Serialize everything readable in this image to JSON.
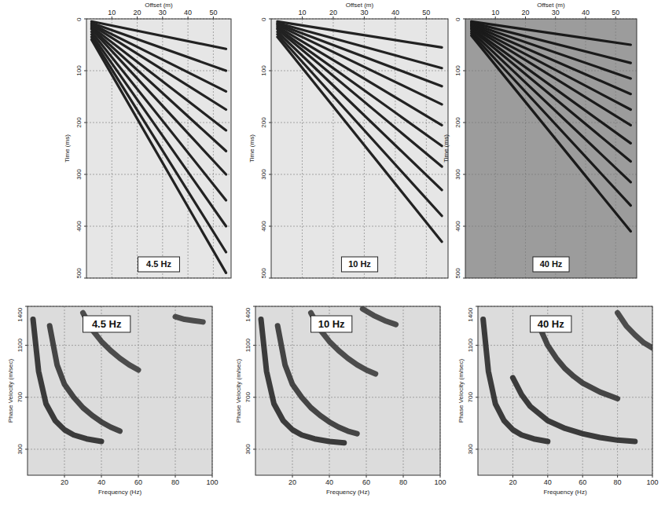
{
  "chart_data": [
    {
      "type": "gather",
      "title": "4.5 Hz",
      "x_label": "Offset (m)",
      "y_label": "Time (ms)",
      "xlim": [
        0,
        57
      ],
      "xticks": [
        10,
        20,
        30,
        40,
        50
      ],
      "ylim": [
        0,
        500
      ],
      "yticks": [
        0,
        100,
        200,
        300,
        400,
        500
      ],
      "grid": true,
      "x": [
        2,
        55
      ],
      "series": [
        {
          "color": "#222222",
          "values": [
            5,
            58
          ]
        },
        {
          "color": "#222222",
          "values": [
            8,
            100
          ]
        },
        {
          "color": "#222222",
          "values": [
            10,
            140
          ]
        },
        {
          "color": "#222222",
          "values": [
            12,
            175
          ]
        },
        {
          "color": "#222222",
          "values": [
            15,
            215
          ]
        },
        {
          "color": "#222222",
          "values": [
            18,
            255
          ]
        },
        {
          "color": "#222222",
          "values": [
            20,
            300
          ]
        },
        {
          "color": "#222222",
          "values": [
            25,
            350
          ]
        },
        {
          "color": "#222222",
          "values": [
            30,
            400
          ]
        },
        {
          "color": "#222222",
          "values": [
            35,
            450
          ]
        },
        {
          "color": "#222222",
          "values": [
            40,
            490
          ]
        }
      ]
    },
    {
      "type": "gather",
      "title": "10 Hz",
      "x_label": "Offset (m)",
      "y_label": "Time (ms)",
      "xlim": [
        0,
        57
      ],
      "xticks": [
        10,
        20,
        30,
        40,
        50
      ],
      "ylim": [
        0,
        500
      ],
      "yticks": [
        0,
        100,
        200,
        300,
        400,
        500
      ],
      "grid": true,
      "x": [
        2,
        55
      ],
      "series": [
        {
          "color": "#222222",
          "values": [
            5,
            55
          ]
        },
        {
          "color": "#222222",
          "values": [
            8,
            95
          ]
        },
        {
          "color": "#222222",
          "values": [
            10,
            130
          ]
        },
        {
          "color": "#222222",
          "values": [
            12,
            165
          ]
        },
        {
          "color": "#222222",
          "values": [
            15,
            205
          ]
        },
        {
          "color": "#222222",
          "values": [
            18,
            245
          ]
        },
        {
          "color": "#222222",
          "values": [
            20,
            285
          ]
        },
        {
          "color": "#222222",
          "values": [
            25,
            330
          ]
        },
        {
          "color": "#222222",
          "values": [
            30,
            380
          ]
        },
        {
          "color": "#222222",
          "values": [
            35,
            430
          ]
        }
      ]
    },
    {
      "type": "gather",
      "title": "40 Hz",
      "x_label": "Offset (m)",
      "y_label": "Time (ms)",
      "xlim": [
        0,
        57
      ],
      "xticks": [
        10,
        20,
        30,
        40,
        50
      ],
      "ylim": [
        0,
        500
      ],
      "yticks": [
        0,
        100,
        200,
        300,
        400,
        500
      ],
      "grid": true,
      "x": [
        2,
        55
      ],
      "series": [
        {
          "color": "#1a1a1a",
          "values": [
            5,
            50
          ]
        },
        {
          "color": "#1a1a1a",
          "values": [
            7,
            85
          ]
        },
        {
          "color": "#1a1a1a",
          "values": [
            9,
            115
          ]
        },
        {
          "color": "#1a1a1a",
          "values": [
            11,
            145
          ]
        },
        {
          "color": "#1a1a1a",
          "values": [
            13,
            175
          ]
        },
        {
          "color": "#1a1a1a",
          "values": [
            15,
            205
          ]
        },
        {
          "color": "#1a1a1a",
          "values": [
            18,
            240
          ]
        },
        {
          "color": "#1a1a1a",
          "values": [
            20,
            275
          ]
        },
        {
          "color": "#1a1a1a",
          "values": [
            24,
            315
          ]
        },
        {
          "color": "#1a1a1a",
          "values": [
            28,
            360
          ]
        },
        {
          "color": "#1a1a1a",
          "values": [
            32,
            410
          ]
        }
      ]
    },
    {
      "type": "dispersion",
      "title": "4.5 Hz",
      "x_label": "Frequency (Hz)",
      "y_label": "Phase Velocity (m/sec)",
      "xlim": [
        0,
        100
      ],
      "xticks": [
        20,
        40,
        60,
        80,
        100
      ],
      "ylim": [
        100,
        1400
      ],
      "yticks": [
        300,
        700,
        1100,
        1400
      ],
      "grid": true,
      "series": [
        {
          "color": "#1e1e1e",
          "x": [
            3,
            6,
            10,
            15,
            20,
            25,
            32,
            40
          ],
          "values": [
            1300,
            900,
            650,
            520,
            450,
            410,
            380,
            360
          ]
        },
        {
          "color": "#2a2a2a",
          "x": [
            12,
            16,
            20,
            25,
            30,
            35,
            40,
            45,
            50
          ],
          "values": [
            1250,
            950,
            800,
            700,
            620,
            560,
            510,
            470,
            440
          ]
        },
        {
          "color": "#333333",
          "x": [
            30,
            35,
            40,
            45,
            50,
            55,
            60
          ],
          "values": [
            1350,
            1220,
            1130,
            1060,
            1000,
            950,
            910
          ]
        },
        {
          "color": "#333333",
          "x": [
            80,
            85,
            90,
            95
          ],
          "values": [
            1320,
            1300,
            1290,
            1280
          ]
        }
      ]
    },
    {
      "type": "dispersion",
      "title": "10 Hz",
      "x_label": "Frequency (Hz)",
      "y_label": "Phase Velocity (m/sec)",
      "xlim": [
        0,
        100
      ],
      "xticks": [
        20,
        40,
        60,
        80,
        100
      ],
      "ylim": [
        100,
        1400
      ],
      "yticks": [
        300,
        700,
        1100,
        1400
      ],
      "grid": true,
      "series": [
        {
          "color": "#1e1e1e",
          "x": [
            3,
            6,
            10,
            15,
            20,
            25,
            32,
            40,
            48
          ],
          "values": [
            1300,
            900,
            650,
            520,
            450,
            410,
            380,
            360,
            350
          ]
        },
        {
          "color": "#2a2a2a",
          "x": [
            12,
            16,
            20,
            25,
            30,
            35,
            40,
            45,
            50,
            55
          ],
          "values": [
            1250,
            950,
            800,
            700,
            620,
            560,
            510,
            470,
            440,
            420
          ]
        },
        {
          "color": "#333333",
          "x": [
            30,
            35,
            40,
            45,
            50,
            55,
            60,
            65
          ],
          "values": [
            1350,
            1220,
            1130,
            1060,
            1000,
            950,
            910,
            880
          ]
        },
        {
          "color": "#333333",
          "x": [
            58,
            64,
            70,
            76
          ],
          "values": [
            1380,
            1330,
            1290,
            1260
          ]
        }
      ]
    },
    {
      "type": "dispersion",
      "title": "40 Hz",
      "x_label": "Frequency (Hz)",
      "y_label": "Phase Velocity (m/sec)",
      "xlim": [
        0,
        100
      ],
      "xticks": [
        20,
        40,
        60,
        80,
        100
      ],
      "ylim": [
        100,
        1400
      ],
      "yticks": [
        300,
        700,
        1100,
        1400
      ],
      "grid": true,
      "series": [
        {
          "color": "#1e1e1e",
          "x": [
            3,
            6,
            10,
            15,
            20,
            25,
            32,
            40
          ],
          "values": [
            1300,
            900,
            650,
            520,
            450,
            410,
            380,
            360
          ]
        },
        {
          "color": "#1e1e1e",
          "x": [
            20,
            25,
            30,
            40,
            50,
            60,
            70,
            80,
            90
          ],
          "values": [
            850,
            720,
            630,
            520,
            460,
            420,
            390,
            370,
            360
          ]
        },
        {
          "color": "#2a2a2a",
          "x": [
            35,
            40,
            45,
            50,
            55,
            60,
            70,
            80
          ],
          "values": [
            1250,
            1100,
            1000,
            920,
            860,
            810,
            740,
            690
          ]
        },
        {
          "color": "#333333",
          "x": [
            80,
            85,
            90,
            95,
            100
          ],
          "values": [
            1350,
            1250,
            1180,
            1120,
            1080
          ]
        }
      ]
    }
  ]
}
